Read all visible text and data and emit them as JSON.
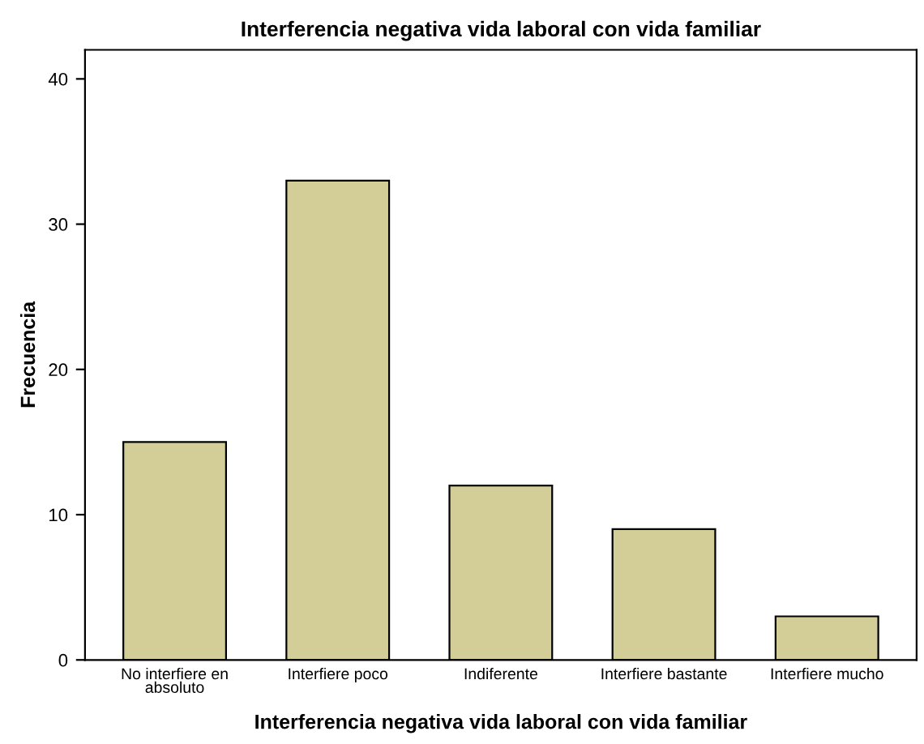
{
  "chart_data": {
    "type": "bar",
    "title": "Interferencia negativa vida laboral con vida familiar",
    "xlabel": "Interferencia negativa vida laboral con vida familiar",
    "ylabel": "Frecuencia",
    "categories": [
      "No interfiere en\nabsoluto",
      "Interfiere poco",
      "Indiferente",
      "Interfiere bastante",
      "Interfiere mucho"
    ],
    "values": [
      15,
      33,
      12,
      9,
      3
    ],
    "color": "#d3ce97",
    "ylim": [
      0,
      42
    ],
    "yticks": [
      0,
      10,
      20,
      30,
      40
    ],
    "grid": false
  }
}
